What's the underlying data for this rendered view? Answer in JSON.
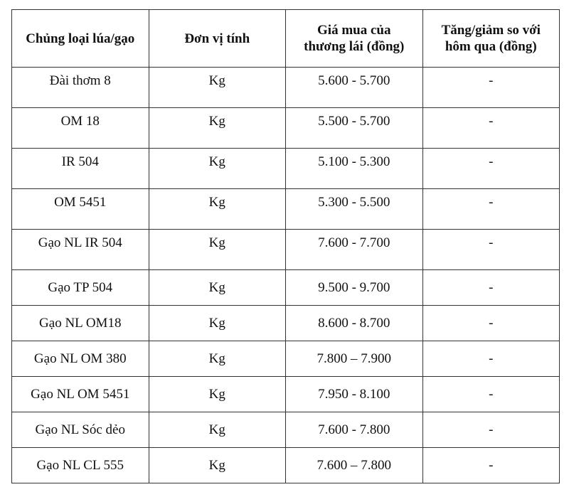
{
  "headers": [
    "Chủng loại lúa/gạo",
    "Đơn vị tính",
    "Giá mua của thương lái (đồng)",
    "Tăng/giảm so với hôm qua (đồng)"
  ],
  "rows": [
    [
      "Đài thơm 8",
      "Kg",
      "5.600 - 5.700",
      "-"
    ],
    [
      "OM 18",
      "Kg",
      "5.500 - 5.700",
      "-"
    ],
    [
      "IR 504",
      "Kg",
      "5.100 - 5.300",
      "-"
    ],
    [
      "OM 5451",
      "Kg",
      "5.300 - 5.500",
      "-"
    ],
    [
      "Gạo NL IR 504",
      "Kg",
      "7.600 - 7.700",
      "-"
    ],
    [
      "Gạo TP 504",
      "Kg",
      "9.500 - 9.700",
      "-"
    ],
    [
      "Gạo NL OM18",
      "Kg",
      "8.600 - 8.700",
      "-"
    ],
    [
      "Gạo NL OM 380",
      "Kg",
      "7.800 – 7.900",
      "-"
    ],
    [
      "Gạo NL OM 5451",
      "Kg",
      "7.950 - 8.100",
      "-"
    ],
    [
      "Gạo NL Sóc dẻo",
      "Kg",
      "7.600 - 7.800",
      "-"
    ],
    [
      "Gạo NL CL 555",
      "Kg",
      "7.600 – 7.800",
      "-"
    ]
  ]
}
